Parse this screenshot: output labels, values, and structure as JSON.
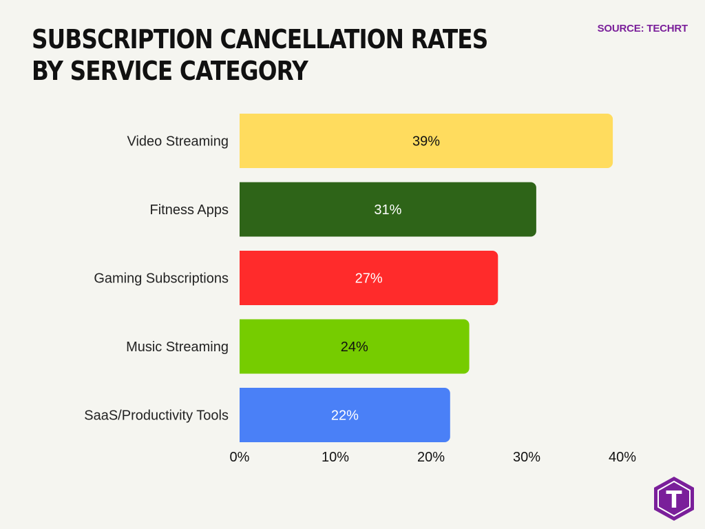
{
  "header": {
    "title": "SUBSCRIPTION CANCELLATION RATES BY SERVICE CATEGORY",
    "source": "SOURCE: TECHRT"
  },
  "logo": {
    "icon": "techrt-logo-icon",
    "letter": "T",
    "color": "#7a1f9a"
  },
  "chart_data": {
    "type": "bar",
    "orientation": "horizontal",
    "title": "SUBSCRIPTION CANCELLATION RATES BY SERVICE CATEGORY",
    "xlabel": "",
    "ylabel": "",
    "categories": [
      "Video Streaming",
      "Fitness Apps",
      "Gaming Subscriptions",
      "Music Streaming",
      "SaaS/Productivity Tools"
    ],
    "values": [
      39,
      31,
      27,
      24,
      22
    ],
    "value_labels": [
      "39%",
      "31%",
      "27%",
      "24%",
      "22%"
    ],
    "colors": [
      "#ffdc5e",
      "#2e6418",
      "#ff2b2b",
      "#76cc00",
      "#4a80f7"
    ],
    "label_colors": [
      "#111111",
      "#ffffff",
      "#ffffff",
      "#111111",
      "#ffffff"
    ],
    "xlim": [
      0,
      40
    ],
    "ticks": [
      0,
      10,
      20,
      30,
      40
    ],
    "tick_labels": [
      "0%",
      "10%",
      "20%",
      "30%",
      "40%"
    ],
    "grid": false,
    "legend": "none"
  }
}
